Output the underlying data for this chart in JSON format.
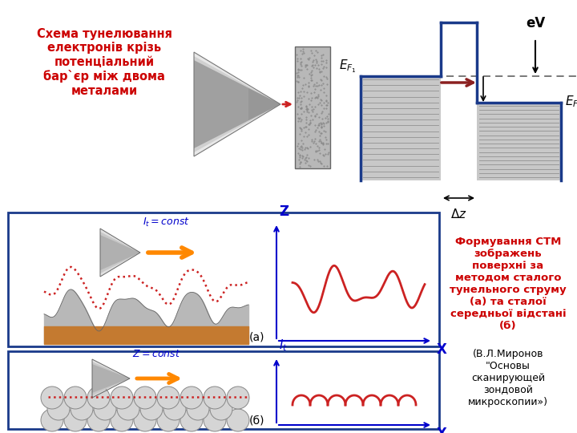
{
  "bg_color": "#ffffff",
  "box_color": "#1a3a8a",
  "barrier_blue": "#1a3a8a",
  "arrow_red": "#cc2222",
  "text_red": "#cc0000",
  "text_blue": "#0000cc",
  "gray_metal": "#c8c8c8",
  "gray_lines": "#999999",
  "title_left": "Схема тунелювання\nелектронів крізь\nпотенціальний\nбар`єр між двома\nметалами",
  "title_right_bold": "Формування СТМ\nзображень\nповерхні за\nметодом сталого\nтунельного струму\n(а) та сталої\nсередньої відстані\n(б)",
  "title_right_normal": "(В.Л.Миронов\n\"Основы\nсканирующей\nзондовой\nмикроскопии»)",
  "label_a": "(а)",
  "label_b": "(б)"
}
